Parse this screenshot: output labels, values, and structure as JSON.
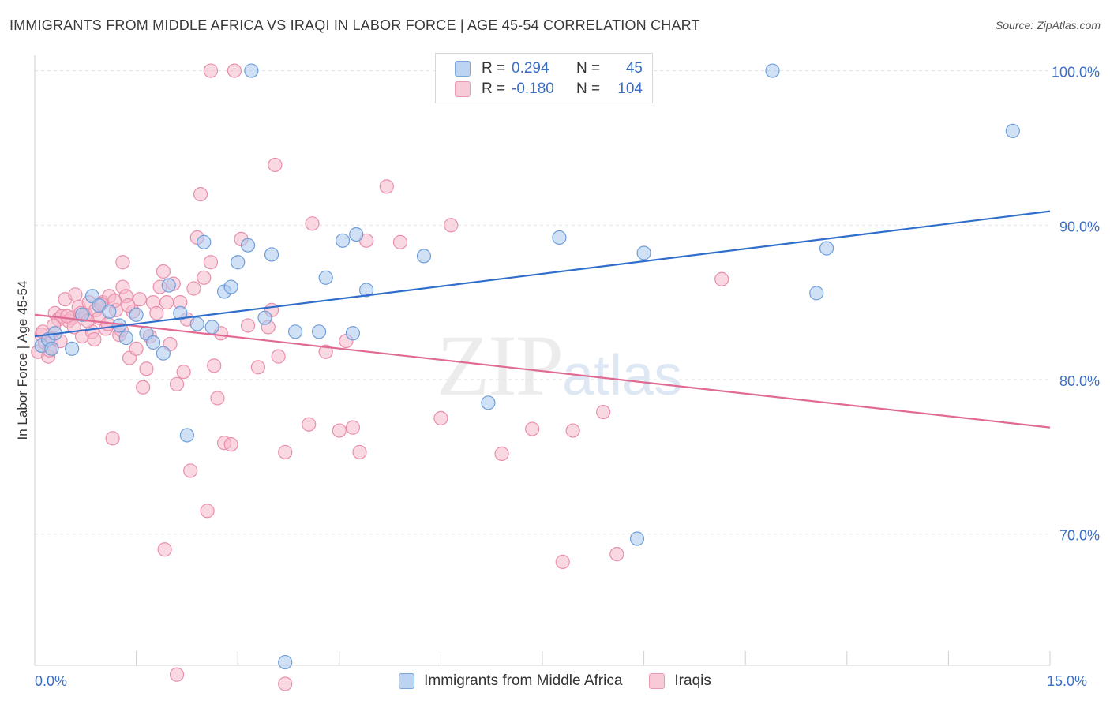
{
  "title": "IMMIGRANTS FROM MIDDLE AFRICA VS IRAQI IN LABOR FORCE | AGE 45-54 CORRELATION CHART",
  "source": "Source: ZipAtlas.com",
  "watermark": {
    "zip": "ZIP",
    "atlas": "atlas"
  },
  "legend_top": {
    "rows": [
      {
        "r_label": "R =",
        "r_value": "0.294",
        "n_label": "N =",
        "n_value": "45"
      },
      {
        "r_label": "R =",
        "r_value": "-0.180",
        "n_label": "N =",
        "n_value": "104"
      }
    ]
  },
  "legend_bottom": [
    "Immigrants from Middle Africa",
    "Iraqis"
  ],
  "x_axis": {
    "min_label": "0.0%",
    "max_label": "15.0%"
  },
  "colors": {
    "blue_fill": "#a9c8ee",
    "blue_stroke": "#6f9ed8",
    "blue_line": "#2f6fcb",
    "pink_fill": "#f5b8cb",
    "pink_stroke": "#e98fab",
    "pink_line": "#e06a94",
    "tick_label": "#3b6fc6",
    "grid": "#e3e3e3"
  },
  "chart_data": {
    "type": "scatter",
    "xlabel": "",
    "ylabel": "In Labor Force | Age 45-54",
    "xlim": [
      0,
      15
    ],
    "ylim": [
      61.5,
      101
    ],
    "x_unit": "%",
    "y_ticks": [
      {
        "value": 100,
        "label": "100.0%"
      },
      {
        "value": 90,
        "label": "90.0%"
      },
      {
        "value": 80,
        "label": "80.0%"
      },
      {
        "value": 70,
        "label": "70.0%"
      }
    ],
    "x_ticks": [
      0,
      1.5,
      3,
      4.5,
      6,
      7.5,
      9,
      10.5,
      12,
      13.5,
      15
    ],
    "grid": true,
    "legend": "bottom",
    "series": [
      {
        "name": "Immigrants from Middle Africa",
        "color": "#a9c8ee",
        "trend": {
          "x": [
            0,
            15
          ],
          "y": [
            82.8,
            90.9
          ]
        },
        "points": [
          [
            0.1,
            82.2
          ],
          [
            0.2,
            82.6
          ],
          [
            0.25,
            82.0
          ],
          [
            0.3,
            83.0
          ],
          [
            0.55,
            82.0
          ],
          [
            0.7,
            84.2
          ],
          [
            0.85,
            85.4
          ],
          [
            0.95,
            84.8
          ],
          [
            1.1,
            84.4
          ],
          [
            1.25,
            83.5
          ],
          [
            1.35,
            82.7
          ],
          [
            1.5,
            84.2
          ],
          [
            1.65,
            83.0
          ],
          [
            1.75,
            82.4
          ],
          [
            1.9,
            81.7
          ],
          [
            1.98,
            86.1
          ],
          [
            2.15,
            84.3
          ],
          [
            2.25,
            76.4
          ],
          [
            2.4,
            83.6
          ],
          [
            2.5,
            88.9
          ],
          [
            2.62,
            83.4
          ],
          [
            2.8,
            85.7
          ],
          [
            2.9,
            86.0
          ],
          [
            3.0,
            87.6
          ],
          [
            3.15,
            88.7
          ],
          [
            3.2,
            100.0
          ],
          [
            3.4,
            84.0
          ],
          [
            3.5,
            88.1
          ],
          [
            3.7,
            61.7
          ],
          [
            3.85,
            83.1
          ],
          [
            4.2,
            83.1
          ],
          [
            4.3,
            86.6
          ],
          [
            4.55,
            89.0
          ],
          [
            4.7,
            83.0
          ],
          [
            4.75,
            89.4
          ],
          [
            4.9,
            85.8
          ],
          [
            5.75,
            88.0
          ],
          [
            6.7,
            78.5
          ],
          [
            7.75,
            89.2
          ],
          [
            8.9,
            69.7
          ],
          [
            9.0,
            88.2
          ],
          [
            10.9,
            100.0
          ],
          [
            11.55,
            85.6
          ],
          [
            11.7,
            88.5
          ],
          [
            14.45,
            96.1
          ]
        ]
      },
      {
        "name": "Iraqis",
        "color": "#f5b8cb",
        "trend": {
          "x": [
            0,
            15
          ],
          "y": [
            84.2,
            76.9
          ]
        },
        "points": [
          [
            0.05,
            81.8
          ],
          [
            0.1,
            82.9
          ],
          [
            0.15,
            82.4
          ],
          [
            0.2,
            81.5
          ],
          [
            0.25,
            82.6
          ],
          [
            0.3,
            84.3
          ],
          [
            0.35,
            83.9
          ],
          [
            0.4,
            84.1
          ],
          [
            0.45,
            85.2
          ],
          [
            0.5,
            83.8
          ],
          [
            0.55,
            84.0
          ],
          [
            0.6,
            85.5
          ],
          [
            0.65,
            84.7
          ],
          [
            0.7,
            82.8
          ],
          [
            0.75,
            84.2
          ],
          [
            0.8,
            85.0
          ],
          [
            0.85,
            83.1
          ],
          [
            0.9,
            84.5
          ],
          [
            0.95,
            84.0
          ],
          [
            1.0,
            85.0
          ],
          [
            1.05,
            83.3
          ],
          [
            1.1,
            85.4
          ],
          [
            1.15,
            76.2
          ],
          [
            1.2,
            84.5
          ],
          [
            1.25,
            82.9
          ],
          [
            1.3,
            86.0
          ],
          [
            1.3,
            87.6
          ],
          [
            1.35,
            85.4
          ],
          [
            1.4,
            81.4
          ],
          [
            1.45,
            84.4
          ],
          [
            1.5,
            82.0
          ],
          [
            1.55,
            85.2
          ],
          [
            1.6,
            79.5
          ],
          [
            1.65,
            80.7
          ],
          [
            1.7,
            82.8
          ],
          [
            1.75,
            85.0
          ],
          [
            1.8,
            84.3
          ],
          [
            1.85,
            86.0
          ],
          [
            1.9,
            87.0
          ],
          [
            1.95,
            85.0
          ],
          [
            2.0,
            82.3
          ],
          [
            2.05,
            86.2
          ],
          [
            2.1,
            79.7
          ],
          [
            2.15,
            85.0
          ],
          [
            2.2,
            80.5
          ],
          [
            2.25,
            83.9
          ],
          [
            2.3,
            74.1
          ],
          [
            2.35,
            85.9
          ],
          [
            2.4,
            89.2
          ],
          [
            2.45,
            92.0
          ],
          [
            2.5,
            86.6
          ],
          [
            2.55,
            71.5
          ],
          [
            2.6,
            87.6
          ],
          [
            2.65,
            80.9
          ],
          [
            2.7,
            78.8
          ],
          [
            2.75,
            83.0
          ],
          [
            2.8,
            75.9
          ],
          [
            2.9,
            75.8
          ],
          [
            3.05,
            89.1
          ],
          [
            3.15,
            83.5
          ],
          [
            3.3,
            80.8
          ],
          [
            3.45,
            83.4
          ],
          [
            3.5,
            84.5
          ],
          [
            3.55,
            93.9
          ],
          [
            3.6,
            81.5
          ],
          [
            3.7,
            75.3
          ],
          [
            4.05,
            77.1
          ],
          [
            4.1,
            90.1
          ],
          [
            4.3,
            81.8
          ],
          [
            4.5,
            76.7
          ],
          [
            4.6,
            82.5
          ],
          [
            4.7,
            76.9
          ],
          [
            4.8,
            75.3
          ],
          [
            4.9,
            89.0
          ],
          [
            5.2,
            92.5
          ],
          [
            5.4,
            88.9
          ],
          [
            6.0,
            77.5
          ],
          [
            6.15,
            90.0
          ],
          [
            6.9,
            75.2
          ],
          [
            7.35,
            76.8
          ],
          [
            7.8,
            68.2
          ],
          [
            7.95,
            76.7
          ],
          [
            8.4,
            77.9
          ],
          [
            8.6,
            68.7
          ],
          [
            10.15,
            86.5
          ],
          [
            2.6,
            100.0
          ],
          [
            2.95,
            100.0
          ],
          [
            3.7,
            60.3
          ],
          [
            2.1,
            60.9
          ],
          [
            1.92,
            69.0
          ],
          [
            0.12,
            83.1
          ],
          [
            0.22,
            81.9
          ],
          [
            0.28,
            83.5
          ],
          [
            0.38,
            82.5
          ],
          [
            0.48,
            84.1
          ],
          [
            0.58,
            83.4
          ],
          [
            0.68,
            84.3
          ],
          [
            0.78,
            83.8
          ],
          [
            0.88,
            82.6
          ],
          [
            0.98,
            84.9
          ],
          [
            1.08,
            83.6
          ],
          [
            1.18,
            85.1
          ],
          [
            1.28,
            83.2
          ],
          [
            1.38,
            84.8
          ]
        ]
      }
    ]
  }
}
